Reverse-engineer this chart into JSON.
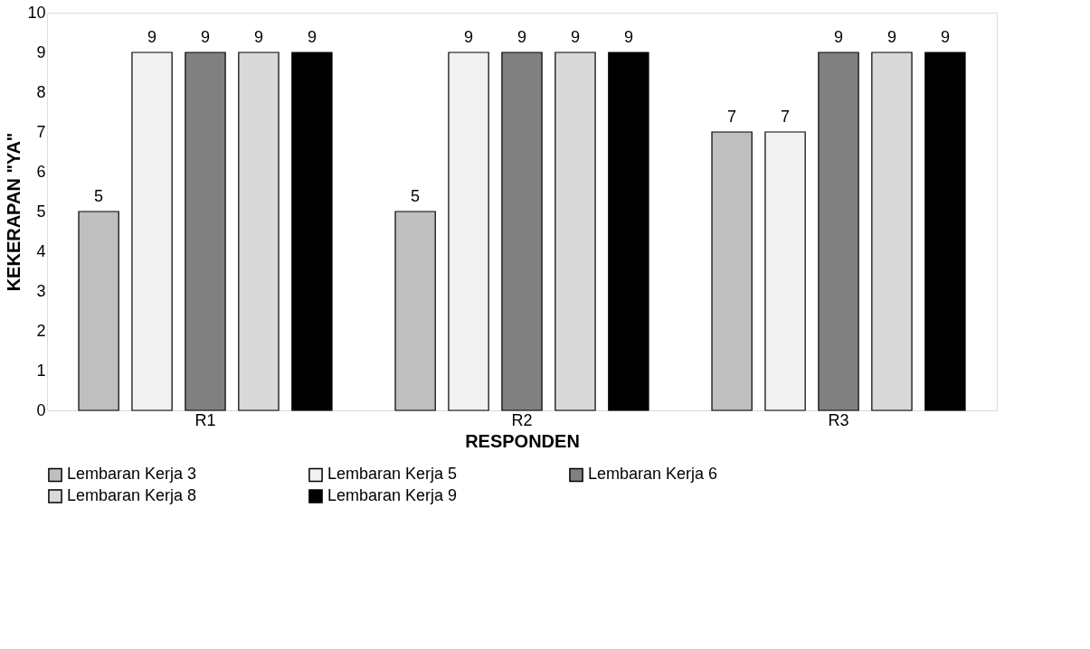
{
  "chart_data": {
    "type": "bar",
    "xlabel": "RESPONDEN",
    "ylabel": "KEKERAPAN \"YA\"",
    "categories": [
      "R1",
      "R2",
      "R3"
    ],
    "series": [
      {
        "name": "Lembaran Kerja 3",
        "color": "#bfbfbf",
        "values": [
          5,
          5,
          7
        ]
      },
      {
        "name": "Lembaran Kerja 5",
        "color": "#f2f2f2",
        "values": [
          9,
          9,
          7
        ]
      },
      {
        "name": "Lembaran Kerja 6",
        "color": "#808080",
        "values": [
          9,
          9,
          9
        ]
      },
      {
        "name": "Lembaran Kerja 8",
        "color": "#d9d9d9",
        "values": [
          9,
          9,
          9
        ]
      },
      {
        "name": "Lembaran Kerja 9",
        "color": "#000000",
        "values": [
          9,
          9,
          9
        ]
      }
    ],
    "ylim": [
      0,
      10
    ],
    "yticks": [
      0,
      1,
      2,
      3,
      4,
      5,
      6,
      7,
      8,
      9,
      10
    ],
    "grid": false,
    "legend": "bottom",
    "data_labels": true
  }
}
